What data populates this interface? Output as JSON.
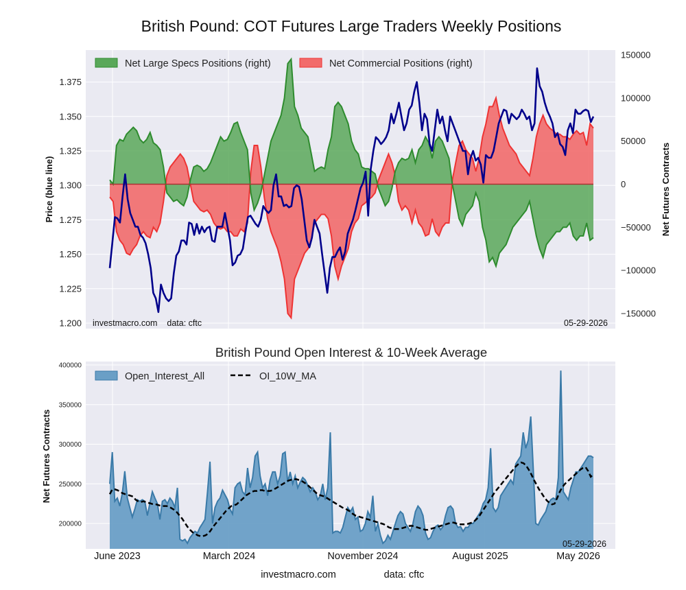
{
  "figure": {
    "title": "British Pound: COT Futures Large Traders Weekly Positions",
    "footer": {
      "site": "investmacro.com",
      "source": "data: cftc"
    }
  },
  "chart_data": [
    {
      "type": "line",
      "panel": "top",
      "title": "British Pound: COT Futures Large Traders Weekly Positions",
      "ylabel": "Price (blue line)",
      "y2label": "Net Futures Contracts",
      "ylim": [
        1.2,
        1.39
      ],
      "y2lim": [
        -150000,
        150000
      ],
      "yticks": [
        "1.200",
        "1.225",
        "1.250",
        "1.275",
        "1.300",
        "1.325",
        "1.350",
        "1.375"
      ],
      "y2ticks": [
        "−150000",
        "−100000",
        "−50000",
        "0",
        "50000",
        "100000",
        "150000"
      ],
      "xticks": [
        "June 2023",
        "March 2024",
        "November 2024",
        "August 2025",
        "May 2026"
      ],
      "grid": true,
      "legend_position": "top-left",
      "annotation_left": "investmacro.com    data: cftc",
      "annotation_right": "05-29-2026",
      "colors": {
        "price": "#00008b",
        "specs": "#2e8b2e",
        "specs_fill": "#5aa85a",
        "comm": "#ee3333",
        "comm_fill": "#f26b6b",
        "zero": "#aa3333"
      },
      "series": [
        {
          "name": "Net Large Specs Positions (right)",
          "kind": "area",
          "values": [
            5000,
            0,
            45000,
            52000,
            50000,
            58000,
            62000,
            66000,
            62000,
            52000,
            48000,
            52000,
            60000,
            48000,
            45000,
            40000,
            20000,
            -10000,
            -15000,
            -20000,
            -18000,
            -22000,
            -25000,
            -15000,
            5000,
            20000,
            22000,
            20000,
            15000,
            18000,
            25000,
            35000,
            45000,
            55000,
            50000,
            52000,
            60000,
            70000,
            72000,
            60000,
            50000,
            40000,
            -10000,
            -30000,
            -22000,
            -10000,
            10000,
            30000,
            50000,
            60000,
            70000,
            80000,
            100000,
            140000,
            145000,
            90000,
            80000,
            65000,
            60000,
            55000,
            35000,
            15000,
            18000,
            20000,
            18000,
            40000,
            55000,
            90000,
            95000,
            90000,
            80000,
            70000,
            50000,
            40000,
            35000,
            20000,
            18000,
            18000,
            15000,
            12000,
            -5000,
            -15000,
            -25000,
            -20000,
            -5000,
            15000,
            25000,
            30000,
            28000,
            30000,
            40000,
            25000,
            40000,
            45000,
            55000,
            48000,
            30000,
            50000,
            55000,
            50000,
            40000,
            30000,
            0,
            -20000,
            -40000,
            -48000,
            -35000,
            -30000,
            -25000,
            -10000,
            -20000,
            -50000,
            -65000,
            -90000,
            -85000,
            -95000,
            -80000,
            -75000,
            -70000,
            -60000,
            -50000,
            -45000,
            -40000,
            -35000,
            -30000,
            -20000,
            -40000,
            -60000,
            -75000,
            -85000,
            -70000,
            -65000,
            -60000,
            -55000,
            -55000,
            -50000,
            -50000,
            -45000,
            -60000,
            -65000,
            -60000,
            -60000,
            -45000,
            -65000,
            -62000
          ]
        },
        {
          "name": "Net Commercial Positions (right)",
          "kind": "area",
          "values": [
            -15000,
            -20000,
            -55000,
            -65000,
            -70000,
            -80000,
            -82000,
            -75000,
            -70000,
            -60000,
            -55000,
            -60000,
            -62000,
            -50000,
            -55000,
            -45000,
            -20000,
            10000,
            20000,
            25000,
            30000,
            35000,
            30000,
            20000,
            0,
            -20000,
            -25000,
            -30000,
            -32000,
            -30000,
            -35000,
            -45000,
            -50000,
            -52000,
            -50000,
            -55000,
            -55000,
            -60000,
            -60000,
            -52000,
            -55000,
            -45000,
            15000,
            45000,
            45000,
            20000,
            -15000,
            -40000,
            -55000,
            -65000,
            -75000,
            -90000,
            -110000,
            -150000,
            -155000,
            -110000,
            -100000,
            -90000,
            -80000,
            -75000,
            -65000,
            -45000,
            -40000,
            -35000,
            -35000,
            -40000,
            -60000,
            -95000,
            -110000,
            -95000,
            -85000,
            -75000,
            -55000,
            -45000,
            -40000,
            -25000,
            -22000,
            -18000,
            -15000,
            -10000,
            5000,
            15000,
            25000,
            35000,
            25000,
            10000,
            -20000,
            -30000,
            -25000,
            -30000,
            -45000,
            -30000,
            -45000,
            -50000,
            -60000,
            -58000,
            -40000,
            -55000,
            -60000,
            -50000,
            -45000,
            -45000,
            5000,
            25000,
            45000,
            50000,
            40000,
            35000,
            30000,
            15000,
            30000,
            55000,
            70000,
            90000,
            90000,
            100000,
            80000,
            65000,
            55000,
            45000,
            40000,
            35000,
            25000,
            20000,
            15000,
            10000,
            30000,
            55000,
            70000,
            80000,
            70000,
            65000,
            62000,
            58000,
            58000,
            55000,
            55000,
            52000,
            58000,
            62000,
            58000,
            60000,
            45000,
            70000,
            65000
          ]
        },
        {
          "name": "Price",
          "kind": "line",
          "axis": "left",
          "values": [
            1.24,
            1.258,
            1.277,
            1.276,
            1.273,
            1.292,
            1.308,
            1.29,
            1.28,
            1.275,
            1.27,
            1.27,
            1.264,
            1.262,
            1.258,
            1.25,
            1.24,
            1.222,
            1.218,
            1.208,
            1.228,
            1.222,
            1.218,
            1.216,
            1.218,
            1.236,
            1.249,
            1.252,
            1.26,
            1.26,
            1.257,
            1.273,
            1.272,
            1.264,
            1.272,
            1.265,
            1.27,
            1.266,
            1.269,
            1.27,
            1.26,
            1.259,
            1.27,
            1.27,
            1.27,
            1.28,
            1.27,
            1.26,
            1.242,
            1.244,
            1.249,
            1.25,
            1.254,
            1.266,
            1.277,
            1.278,
            1.275,
            1.272,
            1.27,
            1.275,
            1.285,
            1.282,
            1.28,
            1.282,
            1.3,
            1.308,
            1.292,
            1.292,
            1.285,
            1.286,
            1.284,
            1.285,
            1.298,
            1.3,
            1.299,
            1.29,
            1.275,
            1.26,
            1.255,
            1.262,
            1.275,
            1.27,
            1.265,
            1.25,
            1.236,
            1.222,
            1.24,
            1.248,
            1.248,
            1.252,
            1.255,
            1.246,
            1.252,
            1.265,
            1.27,
            1.275,
            1.282,
            1.29,
            1.298,
            1.302,
            1.31,
            1.278,
            1.312,
            1.325,
            1.335,
            1.333,
            1.33,
            1.332,
            1.335,
            1.34,
            1.352,
            1.345,
            1.352,
            1.36,
            1.35,
            1.34,
            1.345,
            1.355,
            1.358,
            1.368,
            1.375,
            1.36,
            1.34,
            1.352,
            1.348,
            1.33,
            1.325,
            1.34,
            1.355,
            1.345,
            1.35,
            1.34,
            1.332,
            1.35,
            1.345,
            1.34,
            1.335,
            1.33,
            1.325,
            1.325,
            1.308,
            1.32,
            1.325,
            1.318,
            1.32,
            1.315,
            1.302,
            1.322,
            1.32,
            1.32,
            1.325,
            1.335,
            1.345,
            1.35,
            1.355,
            1.354,
            1.345,
            1.352,
            1.35,
            1.348,
            1.35,
            1.355,
            1.352,
            1.348,
            1.35,
            1.34,
            1.345,
            1.385,
            1.372,
            1.368,
            1.36,
            1.354,
            1.35,
            1.345,
            1.335,
            1.338,
            1.33,
            1.328,
            1.322,
            1.34,
            1.345,
            1.338,
            1.355,
            1.352,
            1.352,
            1.354,
            1.355,
            1.354,
            1.346,
            1.35
          ]
        }
      ]
    },
    {
      "type": "area",
      "panel": "bottom",
      "title": "British Pound Open Interest & 10-Week Average",
      "ylabel": "Net Futures Contracts",
      "ylim": [
        170000,
        410000
      ],
      "yticks": [
        "200000",
        "250000",
        "300000",
        "350000",
        "400000"
      ],
      "xticks": [
        "June 2023",
        "March 2024",
        "November 2024",
        "August 2025",
        "May 2026"
      ],
      "grid": true,
      "legend_position": "top-left",
      "annotation_right": "05-29-2026",
      "colors": {
        "area": "#6a9fc6",
        "area_edge": "#3a7aa8",
        "ma": "#000000"
      },
      "series": [
        {
          "name": "Open_Interest_All",
          "kind": "area",
          "values": [
            250000,
            290000,
            228000,
            232000,
            222000,
            238000,
            266000,
            232000,
            220000,
            208000,
            218000,
            230000,
            228000,
            230000,
            228000,
            210000,
            225000,
            240000,
            232000,
            225000,
            205000,
            228000,
            230000,
            225000,
            232000,
            228000,
            220000,
            245000,
            180000,
            178000,
            180000,
            175000,
            182000,
            186000,
            190000,
            188000,
            195000,
            200000,
            205000,
            240000,
            278000,
            200000,
            220000,
            228000,
            232000,
            242000,
            236000,
            230000,
            218000,
            212000,
            245000,
            250000,
            252000,
            240000,
            236000,
            270000,
            245000,
            258000,
            285000,
            290000,
            260000,
            245000,
            250000,
            235000,
            255000,
            265000,
            265000,
            250000,
            260000,
            288000,
            290000,
            252000,
            265000,
            250000,
            260000,
            245000,
            252000,
            258000,
            255000,
            248000,
            240000,
            245000,
            240000,
            230000,
            235000,
            250000,
            230000,
            245000,
            315000,
            188000,
            190000,
            190000,
            188000,
            195000,
            208000,
            220000,
            215000,
            220000,
            205000,
            208000,
            190000,
            192000,
            200000,
            215000,
            208000,
            235000,
            190000,
            200000,
            185000,
            175000,
            178000,
            185000,
            180000,
            190000,
            200000,
            210000,
            215000,
            212000,
            200000,
            195000,
            190000,
            200000,
            215000,
            222000,
            218000,
            210000,
            188000,
            180000,
            182000,
            190000,
            196000,
            198000,
            192000,
            196000,
            210000,
            220000,
            222000,
            218000,
            200000,
            195000,
            196000,
            190000,
            195000,
            195000,
            200000,
            200000,
            205000,
            210000,
            215000,
            225000,
            230000,
            245000,
            295000,
            220000,
            215000,
            220000,
            235000,
            240000,
            245000,
            250000,
            255000,
            250000,
            275000,
            280000,
            285000,
            315000,
            295000,
            305000,
            335000,
            270000,
            200000,
            198000,
            205000,
            210000,
            215000,
            225000,
            230000,
            232000,
            230000,
            258000,
            393000,
            240000,
            235000,
            230000,
            245000,
            255000,
            265000,
            265000,
            270000,
            275000,
            280000,
            285000,
            285000,
            283000
          ]
        },
        {
          "name": "OI_10W_MA",
          "kind": "line",
          "values": [
            237000,
            243000,
            243000,
            242000,
            240000,
            238000,
            237000,
            236000,
            235000,
            234000,
            230000,
            228000,
            227000,
            228000,
            227000,
            226000,
            225000,
            224000,
            224000,
            223000,
            222000,
            222000,
            222000,
            221000,
            219000,
            217000,
            214000,
            210000,
            206000,
            201000,
            196000,
            192000,
            189000,
            187000,
            185000,
            184000,
            184000,
            185000,
            187000,
            191000,
            196000,
            200000,
            204000,
            208000,
            212000,
            216000,
            219000,
            222000,
            223000,
            224000,
            227000,
            230000,
            233000,
            236000,
            238000,
            240000,
            241000,
            241000,
            242000,
            242000,
            241000,
            241000,
            241000,
            242000,
            244000,
            246000,
            248000,
            250000,
            252000,
            254000,
            255000,
            255000,
            256000,
            255000,
            254000,
            252000,
            250000,
            247000,
            244000,
            241000,
            238000,
            236000,
            235000,
            234000,
            232000,
            230000,
            228000,
            226000,
            224000,
            222000,
            220000,
            219000,
            217000,
            215000,
            212000,
            210000,
            209000,
            208000,
            207000,
            206000,
            205000,
            204000,
            203000,
            202000,
            201000,
            200000,
            199000,
            197000,
            195000,
            194000,
            193000,
            193000,
            193000,
            194000,
            195000,
            196000,
            197000,
            197000,
            196000,
            195000,
            194000,
            193000,
            192000,
            192000,
            193000,
            194000,
            195000,
            196000,
            197000,
            198000,
            199000,
            200000,
            201000,
            201000,
            200000,
            199000,
            199000,
            199000,
            199000,
            200000,
            201000,
            203000,
            206000,
            210000,
            215000,
            220000,
            225000,
            230000,
            235000,
            240000,
            244000,
            248000,
            252000,
            256000,
            260000,
            264000,
            268000,
            272000,
            275000,
            277000,
            276000,
            273000,
            268000,
            262000,
            255000,
            249000,
            243000,
            238000,
            233000,
            229000,
            226000,
            224000,
            225000,
            232000,
            240000,
            246000,
            250000,
            253000,
            256000,
            259000,
            262000,
            265000,
            268000,
            270000,
            271000,
            266000,
            259000,
            262000
          ]
        }
      ]
    }
  ]
}
